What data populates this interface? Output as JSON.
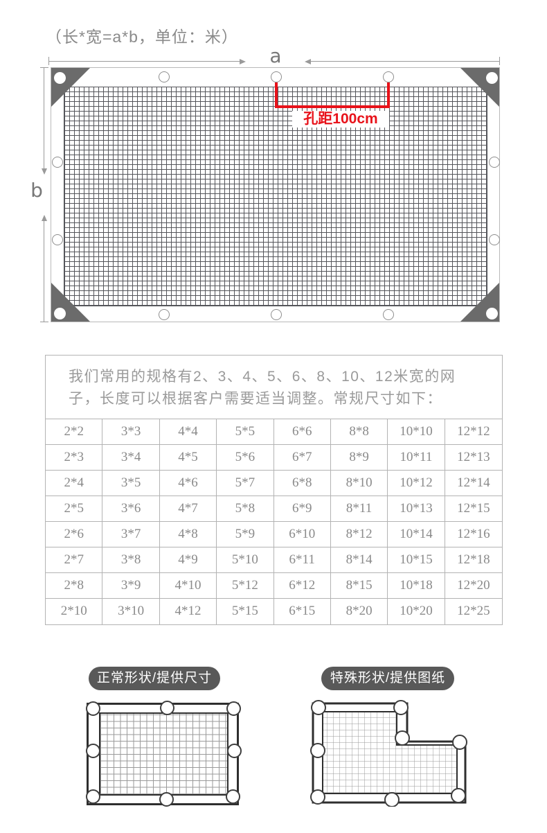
{
  "title": "（长*宽=a*b，单位：米）",
  "diagram": {
    "a_label": "a",
    "b_label": "b",
    "hole_spacing_note": "孔距100cm",
    "accent_red": "#e8121a"
  },
  "spec": {
    "intro_lines": [
      "我们常用的规格有2、3、4、5、6、8、10、12米宽的网",
      "子，长度可以根据客户需要适当调整。常规尺寸如下："
    ],
    "rows": [
      [
        "2*2",
        "3*3",
        "4*4",
        "5*5",
        "6*6",
        "8*8",
        "10*10",
        "12*12"
      ],
      [
        "2*3",
        "3*4",
        "4*5",
        "5*6",
        "6*7",
        "8*9",
        "10*11",
        "12*13"
      ],
      [
        "2*4",
        "3*5",
        "4*6",
        "5*7",
        "6*8",
        "8*10",
        "10*12",
        "12*14"
      ],
      [
        "2*5",
        "3*6",
        "4*7",
        "5*8",
        "6*9",
        "8*11",
        "10*13",
        "12*15"
      ],
      [
        "2*6",
        "3*7",
        "4*8",
        "5*9",
        "6*10",
        "8*12",
        "10*14",
        "12*16"
      ],
      [
        "2*7",
        "3*8",
        "4*9",
        "5*10",
        "6*11",
        "8*14",
        "10*15",
        "12*18"
      ],
      [
        "2*8",
        "3*9",
        "4*10",
        "5*12",
        "6*12",
        "8*15",
        "10*18",
        "12*20"
      ],
      [
        "2*10",
        "3*10",
        "4*12",
        "5*15",
        "6*15",
        "8*20",
        "10*20",
        "12*25"
      ]
    ]
  },
  "footer": {
    "normal_shape_label": "正常形状/提供尺寸",
    "special_shape_label": "特殊形状/提供图纸"
  }
}
